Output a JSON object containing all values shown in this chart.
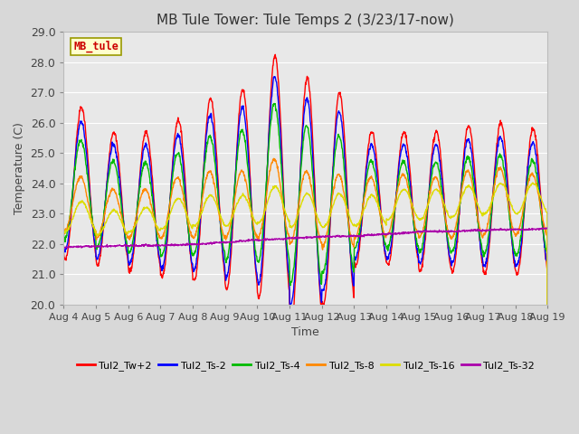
{
  "title": "MB Tule Tower: Tule Temps 2 (3/23/17-now)",
  "xlabel": "Time",
  "ylabel": "Temperature (C)",
  "ylim": [
    20.0,
    29.0
  ],
  "yticks": [
    20.0,
    21.0,
    22.0,
    23.0,
    24.0,
    25.0,
    26.0,
    27.0,
    28.0,
    29.0
  ],
  "xtick_labels": [
    "Aug 4",
    "Aug 5",
    "Aug 6",
    "Aug 7",
    "Aug 8",
    "Aug 9",
    "Aug 10",
    "Aug 11",
    "Aug 12",
    "Aug 13",
    "Aug 14",
    "Aug 15",
    "Aug 16",
    "Aug 17",
    "Aug 18",
    "Aug 19"
  ],
  "outer_bg": "#d8d8d8",
  "plot_bg": "#e8e8e8",
  "grid_color": "#ffffff",
  "station_label": "MB_tule",
  "station_label_color": "#cc0000",
  "station_box_face": "#ffffcc",
  "station_box_edge": "#999900",
  "series": [
    {
      "label": "Tul2_Tw+2",
      "color": "#ff0000"
    },
    {
      "label": "Tul2_Ts-2",
      "color": "#0000ff"
    },
    {
      "label": "Tul2_Ts-4",
      "color": "#00bb00"
    },
    {
      "label": "Tul2_Ts-8",
      "color": "#ff8800"
    },
    {
      "label": "Tul2_Ts-16",
      "color": "#dddd00"
    },
    {
      "label": "Tul2_Ts-32",
      "color": "#aa00aa"
    }
  ]
}
